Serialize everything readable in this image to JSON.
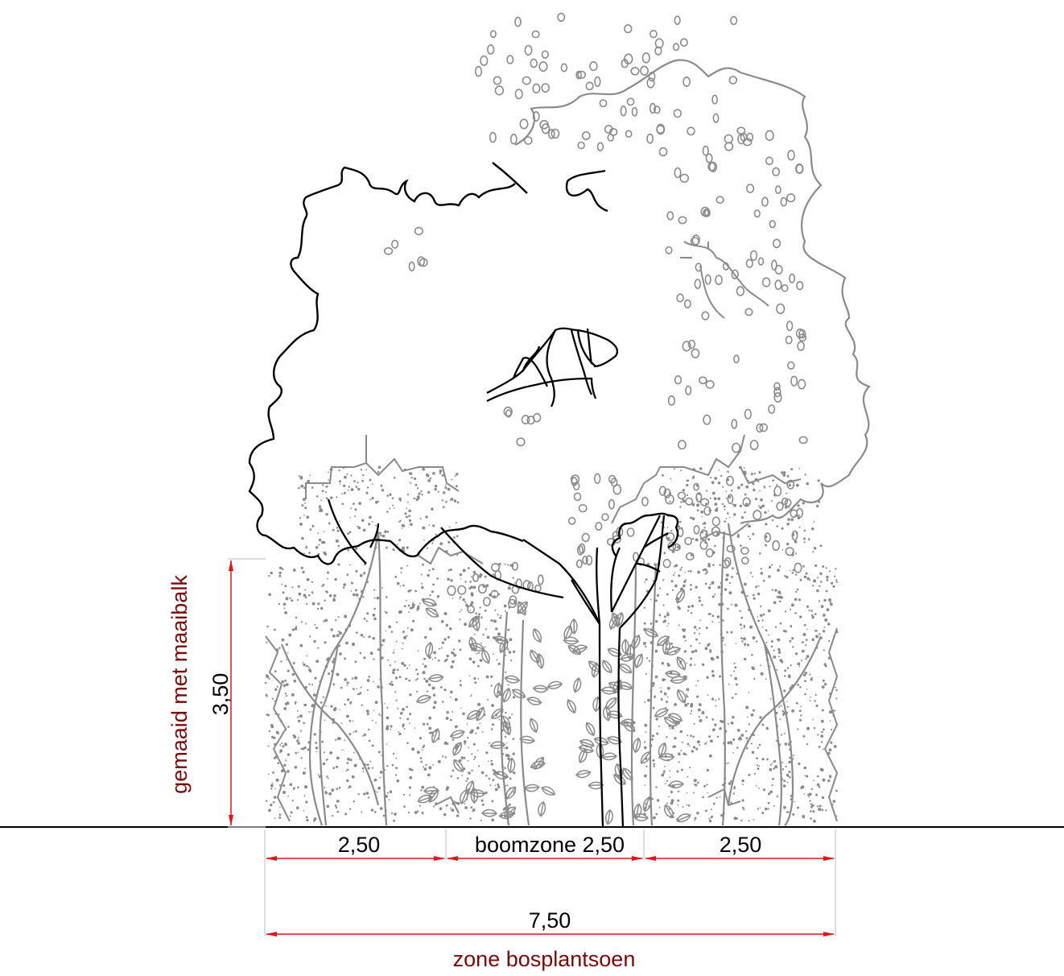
{
  "dimensions": {
    "height_value": "3,50",
    "left_width": "2,50",
    "middle_width": "boomzone 2,50",
    "right_width": "2,50",
    "total_width": "7,50"
  },
  "labels": {
    "side_label": "gemaaid met maaibalk",
    "bottom_label": "zone bosplantsoen"
  },
  "colors": {
    "dimension_line": "#e8101a",
    "label_text": "#7a0a0a",
    "outline_black": "#000000",
    "vegetation_gray": "#8a8a8a",
    "extension_line": "#c8c8c8"
  }
}
